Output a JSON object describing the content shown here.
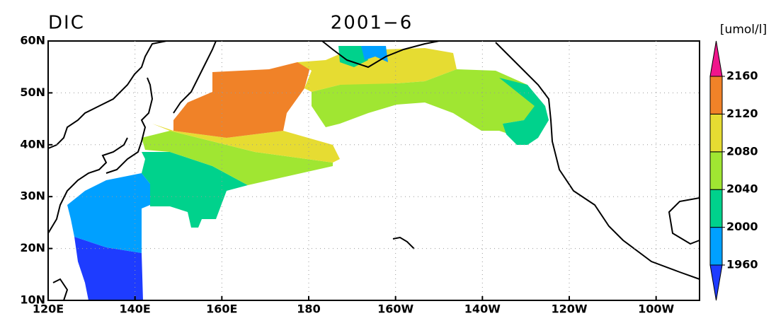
{
  "title_left": "DIC",
  "title_center": "2001−6",
  "colorbar": {
    "unit": "[umol/l]",
    "levels": [
      1960,
      2000,
      2040,
      2080,
      2120,
      2160
    ],
    "colors": [
      "#1e3cff",
      "#00a0ff",
      "#00d28c",
      "#a0e632",
      "#e6dc32",
      "#f08228",
      "#f0168c"
    ]
  },
  "x_labels": [
    "120E",
    "140E",
    "160E",
    "180",
    "160W",
    "140W",
    "120W",
    "100W"
  ],
  "y_labels": [
    "10N",
    "20N",
    "30N",
    "40N",
    "50N",
    "60N"
  ]
}
